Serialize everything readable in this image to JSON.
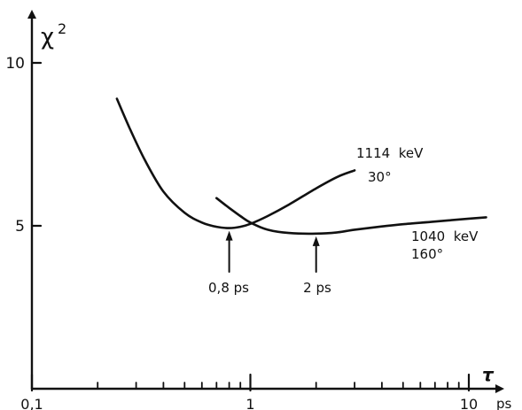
{
  "chart_data": {
    "type": "line",
    "x_scale": "log",
    "xlim": [
      0.1,
      12
    ],
    "ylim": [
      0,
      10.6
    ],
    "ylabel": "χ",
    "ylabel_superscript": "2",
    "xlabel": "τ",
    "x_unit": "ps",
    "x_tick_labels": [
      {
        "x": 0.1,
        "label": "0,1"
      },
      {
        "x": 1,
        "label": "1"
      },
      {
        "x": 10,
        "label": "10"
      }
    ],
    "x_minor_ticks": [
      0.2,
      0.3,
      0.4,
      0.5,
      0.6,
      0.7,
      0.8,
      0.9,
      2,
      3,
      4,
      5,
      6,
      7,
      8,
      9
    ],
    "y_ticks": [
      {
        "y": 5,
        "label": "5"
      },
      {
        "y": 10,
        "label": "10"
      }
    ],
    "series": [
      {
        "name_line1": "1114  keV",
        "name_line2": "30°",
        "x": [
          0.245,
          0.28,
          0.33,
          0.4,
          0.5,
          0.6,
          0.7,
          0.8,
          0.9,
          1.0,
          1.2,
          1.5,
          2.0,
          2.5,
          3.0
        ],
        "y": [
          8.9,
          8.0,
          7.0,
          6.05,
          5.4,
          5.1,
          4.97,
          4.93,
          4.97,
          5.06,
          5.3,
          5.65,
          6.15,
          6.5,
          6.7
        ]
      },
      {
        "name_line1": "1040  keV",
        "name_line2": "160°",
        "x": [
          0.7,
          0.8,
          0.9,
          1.0,
          1.2,
          1.5,
          2.0,
          2.5,
          3.0,
          4.0,
          5.0,
          7.0,
          10.0,
          12.0
        ],
        "y": [
          5.85,
          5.55,
          5.3,
          5.1,
          4.88,
          4.78,
          4.76,
          4.8,
          4.88,
          4.98,
          5.05,
          5.13,
          5.22,
          5.26
        ]
      }
    ],
    "annotations": [
      {
        "label": "0,8 ps",
        "x": 0.8,
        "y": 4.93
      },
      {
        "label": "2 ps",
        "x": 2.0,
        "y": 4.76
      }
    ]
  }
}
